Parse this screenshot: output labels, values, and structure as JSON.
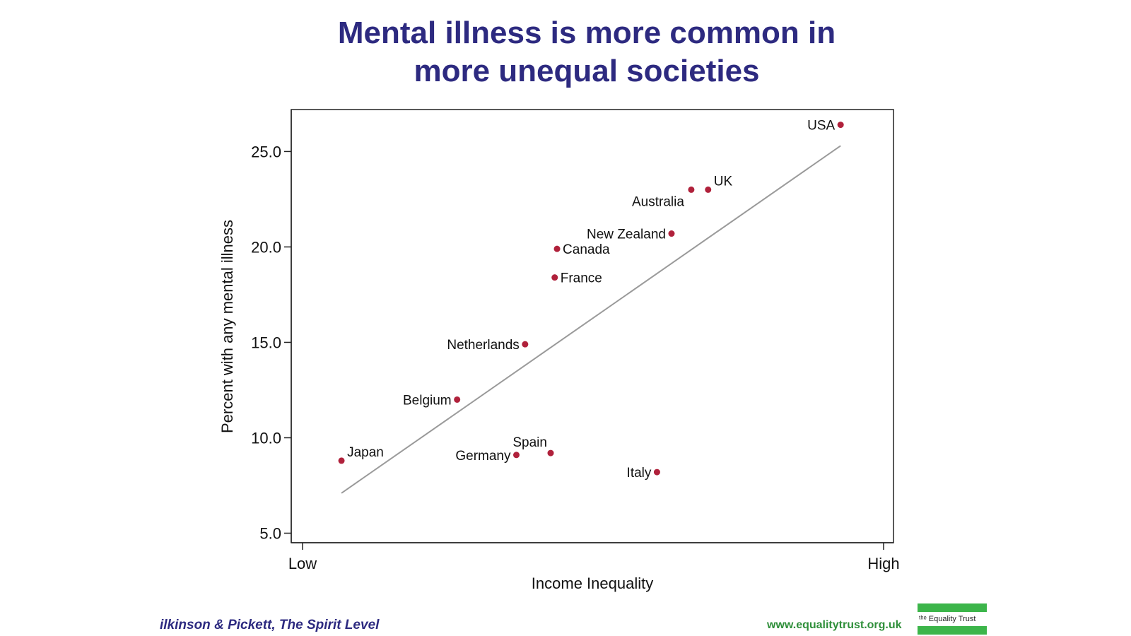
{
  "slide": {
    "title_line1": "Mental illness is more common in",
    "title_line2": "more unequal societies",
    "citation": "ilkinson & Pickett, The Spirit Level",
    "website": "www.equalitytrust.org.uk",
    "logo_text": "ᵗʰᵉ Equality Trust"
  },
  "colors": {
    "title": "#2d2a80",
    "point": "#b0213b",
    "fit_line": "#9a9a9a",
    "citation": "#2d2a80",
    "website": "#2f8f3a",
    "logo_green": "#3cb54a"
  },
  "chart_data": {
    "type": "scatter",
    "xlabel": "Income Inequality",
    "ylabel": "Percent with any mental illness",
    "x_tick_labels": [
      "Low",
      "High"
    ],
    "x_range": [
      0,
      1
    ],
    "ylim": [
      4.5,
      27.2
    ],
    "y_ticks": [
      5.0,
      10.0,
      15.0,
      20.0,
      25.0
    ],
    "y_tick_labels": [
      "5.0",
      "10.0",
      "15.0",
      "20.0",
      "25.0"
    ],
    "grid": false,
    "legend": "none",
    "points": [
      {
        "label": "Japan",
        "x": 0.067,
        "y": 8.8,
        "label_pos": "upper-right"
      },
      {
        "label": "Belgium",
        "x": 0.266,
        "y": 12.0,
        "label_pos": "left"
      },
      {
        "label": "Netherlands",
        "x": 0.383,
        "y": 14.9,
        "label_pos": "left"
      },
      {
        "label": "Germany",
        "x": 0.368,
        "y": 9.1,
        "label_pos": "left"
      },
      {
        "label": "Spain",
        "x": 0.427,
        "y": 9.2,
        "label_pos": "upper-left"
      },
      {
        "label": "France",
        "x": 0.434,
        "y": 18.4,
        "label_pos": "right"
      },
      {
        "label": "Canada",
        "x": 0.438,
        "y": 19.9,
        "label_pos": "right"
      },
      {
        "label": "Italy",
        "x": 0.61,
        "y": 8.2,
        "label_pos": "left"
      },
      {
        "label": "New Zealand",
        "x": 0.635,
        "y": 20.7,
        "label_pos": "left"
      },
      {
        "label": "Australia",
        "x": 0.669,
        "y": 23.0,
        "label_pos": "lower-left"
      },
      {
        "label": "UK",
        "x": 0.698,
        "y": 23.0,
        "label_pos": "upper-right"
      },
      {
        "label": "USA",
        "x": 0.926,
        "y": 26.4,
        "label_pos": "left"
      }
    ],
    "fit_line": {
      "x": [
        0.067,
        0.926
      ],
      "y": [
        7.1,
        25.3
      ]
    }
  }
}
